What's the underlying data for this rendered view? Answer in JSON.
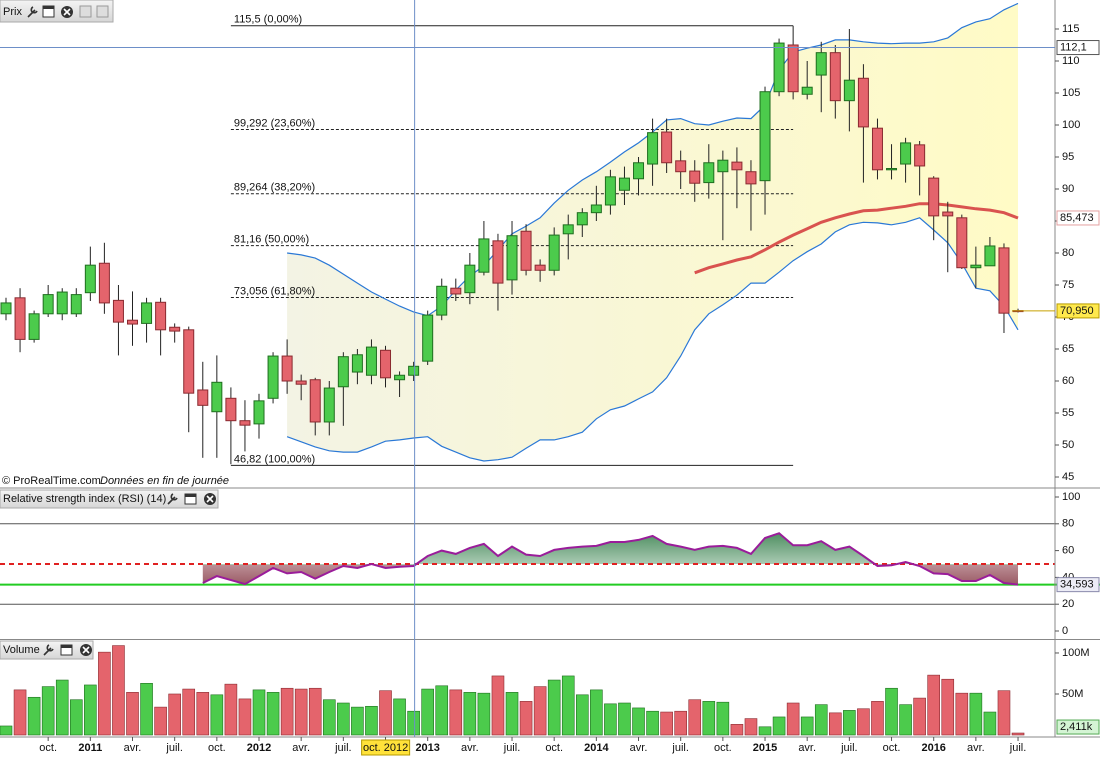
{
  "chart_data": {
    "type": "candlestick",
    "title": "Prix",
    "source": "© ProRealTime.com",
    "note": "Données en fin de journée",
    "categories": [
      null,
      null,
      null,
      "oct.",
      null,
      null,
      "2011",
      null,
      null,
      "avr.",
      null,
      null,
      "juil.",
      null,
      null,
      "oct.",
      null,
      null,
      "2012",
      null,
      null,
      "avr.",
      null,
      null,
      "juil.",
      null,
      null,
      "oct.",
      null,
      null,
      "2013",
      null,
      null,
      "avr.",
      null,
      null,
      "juil.",
      null,
      null,
      "oct.",
      null,
      null,
      "2014",
      null,
      null,
      "avr.",
      null,
      null,
      "juil.",
      null,
      null,
      "oct.",
      null,
      null,
      "2015",
      null,
      null,
      "avr.",
      null,
      null,
      "juil.",
      null,
      null,
      "oct.",
      null,
      null,
      "2016",
      null,
      null,
      "avr.",
      null,
      null,
      "juil."
    ],
    "open": [
      70.5,
      73,
      66.5,
      70.5,
      70.5,
      70.5,
      73.8,
      78.4,
      72.6,
      69.5,
      69,
      72.3,
      68.4,
      68,
      58.6,
      55.2,
      57.3,
      53.8,
      53.3,
      57.3,
      63.9,
      60,
      60.2,
      53.6,
      59.1,
      61.4,
      60.9,
      64.8,
      60.2,
      60.9,
      63.1,
      70.3,
      74.5,
      73.8,
      77,
      81.9,
      75.8,
      83.4,
      78.1,
      77.3,
      83,
      84.4,
      86.3,
      87.5,
      89.8,
      91.6,
      93.9,
      98.9,
      94.4,
      92.8,
      91,
      92.7,
      94.2,
      92.7,
      91.3,
      105.2,
      112.5,
      104.8,
      107.8,
      111.3,
      103.8,
      107.3,
      99.5,
      93,
      93.9,
      96.9,
      91.7,
      86.4,
      85.5,
      77.7,
      78,
      80.8,
      71
    ],
    "high": [
      73,
      74.5,
      71,
      75,
      74.5,
      74.5,
      81,
      81.6,
      75,
      74,
      73,
      73,
      69,
      68.5,
      63,
      64,
      59,
      57,
      58,
      64.5,
      66.5,
      61,
      60.5,
      60,
      64.5,
      65,
      66.5,
      65.5,
      61.5,
      63,
      71,
      76,
      76,
      80,
      85,
      83,
      85,
      84.5,
      79,
      84,
      86,
      87,
      90.5,
      93,
      93.5,
      95,
      101,
      101,
      96,
      94.5,
      97,
      96,
      96.5,
      94.5,
      106,
      113.5,
      115.5,
      110,
      113,
      112.5,
      115,
      109.5,
      101,
      97,
      98,
      97.5,
      92,
      88,
      86,
      81,
      82.5,
      81.5,
      71.3
    ],
    "low": [
      69.5,
      64.5,
      66,
      70,
      69.5,
      70,
      72.5,
      70.5,
      64,
      65.5,
      66,
      64,
      66,
      52,
      48,
      48,
      47,
      49,
      51,
      56.5,
      58,
      57,
      51.5,
      51.5,
      53,
      59.5,
      59.5,
      59,
      57.5,
      60,
      62.5,
      69.5,
      72.5,
      72,
      76.5,
      71,
      73.5,
      76.5,
      75.5,
      76.5,
      79,
      82.5,
      85,
      86,
      87.5,
      89,
      90.5,
      92.5,
      90,
      88,
      88.5,
      82,
      87,
      83.5,
      86,
      104.5,
      104,
      104,
      102,
      101,
      99,
      91,
      91.5,
      91.5,
      91,
      89,
      82,
      77,
      77.5,
      74.5,
      78,
      67.5,
      70.7
    ],
    "close": [
      72.2,
      66.5,
      70.5,
      73.5,
      73.9,
      73.5,
      78.1,
      72.2,
      69.2,
      68.9,
      72.2,
      68,
      67.8,
      58.1,
      56.2,
      59.8,
      53.8,
      53.1,
      56.9,
      63.9,
      60,
      59.5,
      53.6,
      58.9,
      63.8,
      64.1,
      65.3,
      60.5,
      60.9,
      62.3,
      70.3,
      74.8,
      73.6,
      78.1,
      82.2,
      75.3,
      82.7,
      77.3,
      77.3,
      82.8,
      84.4,
      86.3,
      87.5,
      91.9,
      91.7,
      94.1,
      98.8,
      94.1,
      92.7,
      90.9,
      94.1,
      94.5,
      93,
      90.8,
      105.2,
      112.8,
      105.2,
      105.9,
      111.3,
      103.8,
      107,
      99.7,
      93,
      93.2,
      97.2,
      93.6,
      85.8,
      85.8,
      77.7,
      78.1,
      81.1,
      70.6,
      70.95
    ],
    "up_color": "#4ccb4c",
    "down_color": "#e4646c",
    "ylim": [
      43.44,
      119.06
    ],
    "yticks": [
      45,
      50,
      55,
      60,
      65,
      70,
      75,
      80,
      85,
      90,
      95,
      100,
      105,
      110,
      115
    ],
    "bands": {
      "color": "#2a78d6",
      "fill": "#fcf9cf",
      "upper": [
        null,
        null,
        null,
        null,
        null,
        null,
        null,
        null,
        null,
        null,
        null,
        null,
        null,
        null,
        null,
        null,
        null,
        null,
        null,
        null,
        80.0,
        79.7,
        79.2,
        78.1,
        76.7,
        75.3,
        73.9,
        72.8,
        71.7,
        70.8,
        70.2,
        71.7,
        74.2,
        76.4,
        78.0,
        80.5,
        83.0,
        84.2,
        85.5,
        87.8,
        89.8,
        91.4,
        92.7,
        94.2,
        95.8,
        97.2,
        98.9,
        100.8,
        101.0,
        100.2,
        100.0,
        100.6,
        101.1,
        101.0,
        103.1,
        108.6,
        111.4,
        112.0,
        112.5,
        113.3,
        113.3,
        113.0,
        112.8,
        112.7,
        112.8,
        112.8,
        113.0,
        113.6,
        115.2,
        116.1,
        116.6,
        118.0,
        119.0
      ],
      "lower": [
        null,
        null,
        null,
        null,
        null,
        null,
        null,
        null,
        null,
        null,
        null,
        null,
        null,
        null,
        null,
        null,
        null,
        null,
        null,
        null,
        51.3,
        50.5,
        49.7,
        49.1,
        48.9,
        48.9,
        49.7,
        50.6,
        50.8,
        51.1,
        51.3,
        49.8,
        48.9,
        48.0,
        47.5,
        47.7,
        48.1,
        49.5,
        50.8,
        50.8,
        51.3,
        52.0,
        54.1,
        55.5,
        56.1,
        57.2,
        58.3,
        60.5,
        63.9,
        68.0,
        70.5,
        71.9,
        73.4,
        75.3,
        75.3,
        77.0,
        78.8,
        80.2,
        81.4,
        83.3,
        84.4,
        84.8,
        84.7,
        84.4,
        84.8,
        85.5,
        83.6,
        81.6,
        78.4,
        74.5,
        74.1,
        71.7,
        68.0
      ]
    },
    "moving_average": {
      "color": "#d9534f",
      "values": [
        null,
        null,
        null,
        null,
        null,
        null,
        null,
        null,
        null,
        null,
        null,
        null,
        null,
        null,
        null,
        null,
        null,
        null,
        null,
        null,
        null,
        null,
        null,
        null,
        null,
        null,
        null,
        null,
        null,
        null,
        null,
        null,
        null,
        null,
        null,
        null,
        null,
        null,
        null,
        null,
        null,
        null,
        null,
        null,
        null,
        null,
        null,
        null,
        null,
        76.9,
        77.7,
        78.3,
        78.9,
        79.4,
        80.5,
        81.7,
        82.8,
        83.8,
        84.8,
        85.5,
        86.1,
        86.6,
        86.7,
        87.0,
        87.3,
        87.7,
        87.7,
        87.5,
        87.2,
        86.9,
        86.7,
        86.3,
        85.473
      ],
      "last": {
        "value": 85.473,
        "label": "85,473"
      }
    },
    "last_price": {
      "value": 70.95,
      "label": "70,950"
    },
    "crosshair": {
      "x_label": "oct. 2012",
      "y": {
        "value": 112.1,
        "label": "112,1"
      }
    },
    "fibonacci": [
      {
        "value": 115.5,
        "label": "115,5 (0,00%)",
        "style": "solid"
      },
      {
        "value": 99.292,
        "label": "99,292 (23,60%)",
        "style": "dashed"
      },
      {
        "value": 89.264,
        "label": "89,264 (38,20%)",
        "style": "dashed"
      },
      {
        "value": 81.16,
        "label": "81,16 (50,00%)",
        "style": "dashed"
      },
      {
        "value": 73.056,
        "label": "73,056 (61,80%)",
        "style": "dashed"
      },
      {
        "value": 46.82,
        "label": "46,82 (100,00%)",
        "style": "solid"
      }
    ],
    "rsi": {
      "title": "Relative strength index (RSI) (14)",
      "color": "#9a1c9a",
      "values": [
        null,
        null,
        null,
        null,
        null,
        null,
        null,
        null,
        null,
        null,
        null,
        null,
        null,
        null,
        35.8,
        41,
        38,
        35,
        41,
        47,
        43,
        44,
        39,
        44,
        48.5,
        47,
        50,
        47,
        48,
        48.5,
        56,
        60,
        57.5,
        62,
        65,
        56,
        63,
        57,
        56,
        60.5,
        62,
        63,
        63.5,
        66.4,
        66.4,
        68,
        71,
        65,
        63,
        60.5,
        63,
        63.5,
        62,
        57.5,
        69.4,
        73,
        64,
        64,
        67,
        60.5,
        63,
        56,
        48.5,
        49,
        51.5,
        48.5,
        43,
        42.5,
        37.3,
        37.3,
        41.8,
        35.8,
        34.593
      ],
      "ylim": [
        -5.22,
        105.22
      ],
      "yticks": [
        0,
        20,
        40,
        60,
        80,
        100
      ],
      "levels": [
        {
          "value": 80,
          "style": "grey"
        },
        {
          "value": 50,
          "style": "red-dashed"
        },
        {
          "value": 20,
          "style": "grey"
        }
      ],
      "last": {
        "value": 34.593,
        "label": "34,593"
      }
    },
    "volume": {
      "title": "Volume",
      "values": [
        11000000,
        55000000,
        46000000,
        59000000,
        67000000,
        43000000,
        61000000,
        101000000,
        109000000,
        52000000,
        63000000,
        34000000,
        50000000,
        56000000,
        52000000,
        49000000,
        62000000,
        44000000,
        55000000,
        52000000,
        57000000,
        56000000,
        57000000,
        43000000,
        39000000,
        34000000,
        35000000,
        54000000,
        44000000,
        29000000,
        56000000,
        60000000,
        55000000,
        52000000,
        51000000,
        72000000,
        52000000,
        41000000,
        59000000,
        67000000,
        72000000,
        49000000,
        55000000,
        38000000,
        39000000,
        33000000,
        29000000,
        28000000,
        29000000,
        43000000,
        41000000,
        40000000,
        13000000,
        20000000,
        10000000,
        22000000,
        39000000,
        22000000,
        37000000,
        27000000,
        30000000,
        32000000,
        41000000,
        57000000,
        37000000,
        45000000,
        73000000,
        68000000,
        51000000,
        51000000,
        28000000,
        54000000,
        2411000
      ],
      "ylim": [
        0,
        114600000
      ],
      "yticks": [
        {
          "value": 50000000,
          "label": "50M"
        },
        {
          "value": 100000000,
          "label": "100M"
        }
      ],
      "last": {
        "value": 2411000,
        "label": "2,411k"
      }
    }
  }
}
